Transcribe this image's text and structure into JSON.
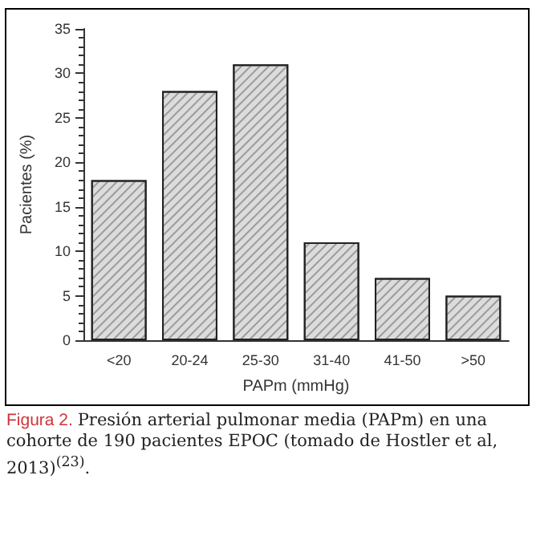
{
  "chart_data": {
    "type": "bar",
    "xlabel": "PAPm (mmHg)",
    "ylabel": "Pacientes (%)",
    "categories": [
      "<20",
      "20-24",
      "25-30",
      "31-40",
      "41-50",
      ">50"
    ],
    "values": [
      18,
      28,
      31,
      11,
      7,
      5
    ],
    "color": "#dcdcdc",
    "ylim": [
      0,
      35
    ],
    "yticks": [
      0,
      5,
      10,
      15,
      20,
      25,
      30,
      35
    ],
    "grid": false,
    "annotations": [
      "Figura 2.",
      "Presión arterial pulmonar media (PAPm) en una cohorte de 190 pacientes EPOC (tomado de Hostler et al, 2013)$^{(23)}$."
    ]
  }
}
